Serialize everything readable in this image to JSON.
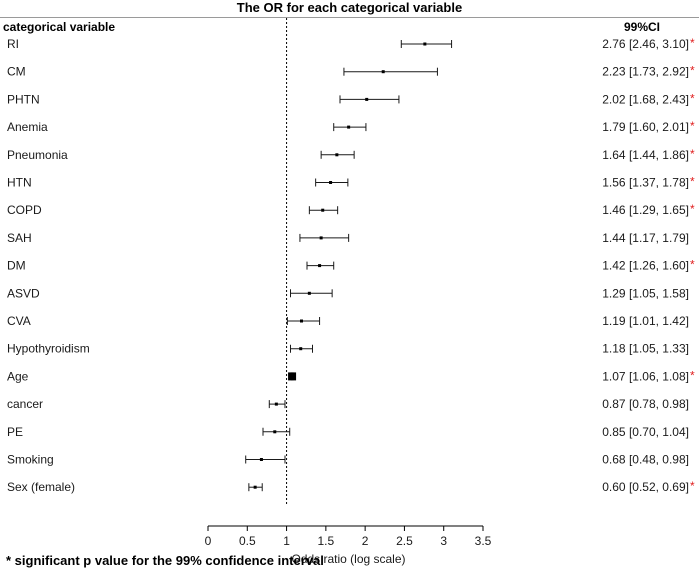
{
  "chart_data": {
    "type": "forest",
    "title": "The OR for each categorical variable",
    "row_header": "categorical variable",
    "ci_header": "99%CI",
    "xlabel": "Odds ratio (log scale)",
    "xlim": [
      0,
      3.5
    ],
    "xticks": [
      "0",
      "0.5",
      "1",
      "1.5",
      "2",
      "2.5",
      "3",
      "3.5"
    ],
    "reference_line": 1,
    "footnote": "* significant p value for the 99% confidence interval",
    "significance_marker": "*",
    "significance_color": "#e02020",
    "rows": [
      {
        "label": "RI",
        "or": 2.76,
        "lower": 2.46,
        "upper": 3.1,
        "ci_text": "2.76 [2.46, 3.10]",
        "significant": true
      },
      {
        "label": "CM",
        "or": 2.23,
        "lower": 1.73,
        "upper": 2.92,
        "ci_text": "2.23 [1.73, 2.92]",
        "significant": true
      },
      {
        "label": "PHTN",
        "or": 2.02,
        "lower": 1.68,
        "upper": 2.43,
        "ci_text": "2.02 [1.68, 2.43]",
        "significant": true
      },
      {
        "label": "Anemia",
        "or": 1.79,
        "lower": 1.6,
        "upper": 2.01,
        "ci_text": "1.79 [1.60, 2.01]",
        "significant": true
      },
      {
        "label": "Pneumonia",
        "or": 1.64,
        "lower": 1.44,
        "upper": 1.86,
        "ci_text": "1.64 [1.44, 1.86]",
        "significant": true
      },
      {
        "label": "HTN",
        "or": 1.56,
        "lower": 1.37,
        "upper": 1.78,
        "ci_text": "1.56 [1.37, 1.78]",
        "significant": true
      },
      {
        "label": "COPD",
        "or": 1.46,
        "lower": 1.29,
        "upper": 1.65,
        "ci_text": "1.46 [1.29, 1.65]",
        "significant": true
      },
      {
        "label": "SAH",
        "or": 1.44,
        "lower": 1.17,
        "upper": 1.79,
        "ci_text": "1.44 [1.17, 1.79]",
        "significant": false
      },
      {
        "label": "DM",
        "or": 1.42,
        "lower": 1.26,
        "upper": 1.6,
        "ci_text": "1.42 [1.26, 1.60]",
        "significant": true
      },
      {
        "label": "ASVD",
        "or": 1.29,
        "lower": 1.05,
        "upper": 1.58,
        "ci_text": "1.29 [1.05, 1.58]",
        "significant": false
      },
      {
        "label": "CVA",
        "or": 1.19,
        "lower": 1.01,
        "upper": 1.42,
        "ci_text": "1.19 [1.01, 1.42]",
        "significant": false
      },
      {
        "label": "Hypothyroidism",
        "or": 1.18,
        "lower": 1.05,
        "upper": 1.33,
        "ci_text": "1.18 [1.05, 1.33]",
        "significant": false
      },
      {
        "label": "Age",
        "or": 1.07,
        "lower": 1.06,
        "upper": 1.08,
        "ci_text": "1.07 [1.06, 1.08]",
        "significant": true
      },
      {
        "label": "cancer",
        "or": 0.87,
        "lower": 0.78,
        "upper": 0.98,
        "ci_text": "0.87 [0.78, 0.98]",
        "significant": false
      },
      {
        "label": "PE",
        "or": 0.85,
        "lower": 0.7,
        "upper": 1.04,
        "ci_text": "0.85 [0.70, 1.04]",
        "significant": false
      },
      {
        "label": "Smoking",
        "or": 0.68,
        "lower": 0.48,
        "upper": 0.98,
        "ci_text": "0.68 [0.48, 0.98]",
        "significant": false
      },
      {
        "label": "Sex (female)",
        "or": 0.6,
        "lower": 0.52,
        "upper": 0.69,
        "ci_text": "0.60 [0.52, 0.69]",
        "significant": true
      }
    ]
  }
}
